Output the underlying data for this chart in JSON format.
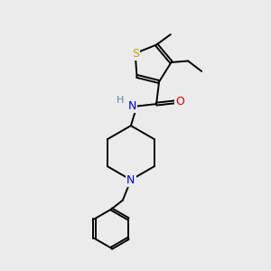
{
  "background_color": "#ebebeb",
  "bond_color": "#000000",
  "S_color": "#c8a000",
  "N_color": "#0000e0",
  "O_color": "#dd0000",
  "H_color": "#5a8a8a",
  "figsize": [
    3.0,
    3.0
  ],
  "dpi": 100,
  "lw": 1.4,
  "xlim": [
    0,
    10
  ],
  "ylim": [
    0,
    10
  ]
}
